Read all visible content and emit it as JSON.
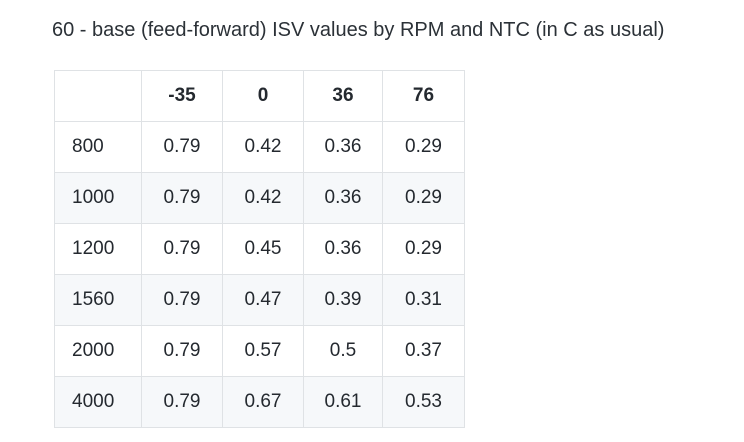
{
  "page": {
    "title": "60 - base (feed-forward) ISV values by RPM and NTC (in C as usual)"
  },
  "colors": {
    "border": "#dfe2e5",
    "stripe_row_background": "#f6f8fa",
    "text": "#24292f"
  },
  "table": {
    "column_headers": [
      "",
      "-35",
      "0",
      "36",
      "76"
    ],
    "rows": [
      {
        "label": "800",
        "values": [
          "0.79",
          "0.42",
          "0.36",
          "0.29"
        ]
      },
      {
        "label": "1000",
        "values": [
          "0.79",
          "0.42",
          "0.36",
          "0.29"
        ]
      },
      {
        "label": "1200",
        "values": [
          "0.79",
          "0.45",
          "0.36",
          "0.29"
        ]
      },
      {
        "label": "1560",
        "values": [
          "0.79",
          "0.47",
          "0.39",
          "0.31"
        ]
      },
      {
        "label": "2000",
        "values": [
          "0.79",
          "0.57",
          "0.5",
          "0.37"
        ]
      },
      {
        "label": "4000",
        "values": [
          "0.79",
          "0.67",
          "0.61",
          "0.53"
        ]
      }
    ]
  },
  "chart_data": {
    "type": "table",
    "title": "60 - base (feed-forward) ISV values by RPM and NTC (in C as usual)",
    "row_dimension": "RPM",
    "column_dimension": "NTC (C)",
    "columns": [
      -35,
      0,
      36,
      76
    ],
    "rows": [
      800,
      1000,
      1200,
      1560,
      2000,
      4000
    ],
    "values": [
      [
        0.79,
        0.42,
        0.36,
        0.29
      ],
      [
        0.79,
        0.42,
        0.36,
        0.29
      ],
      [
        0.79,
        0.45,
        0.36,
        0.29
      ],
      [
        0.79,
        0.47,
        0.39,
        0.31
      ],
      [
        0.79,
        0.57,
        0.5,
        0.37
      ],
      [
        0.79,
        0.67,
        0.61,
        0.53
      ]
    ]
  }
}
